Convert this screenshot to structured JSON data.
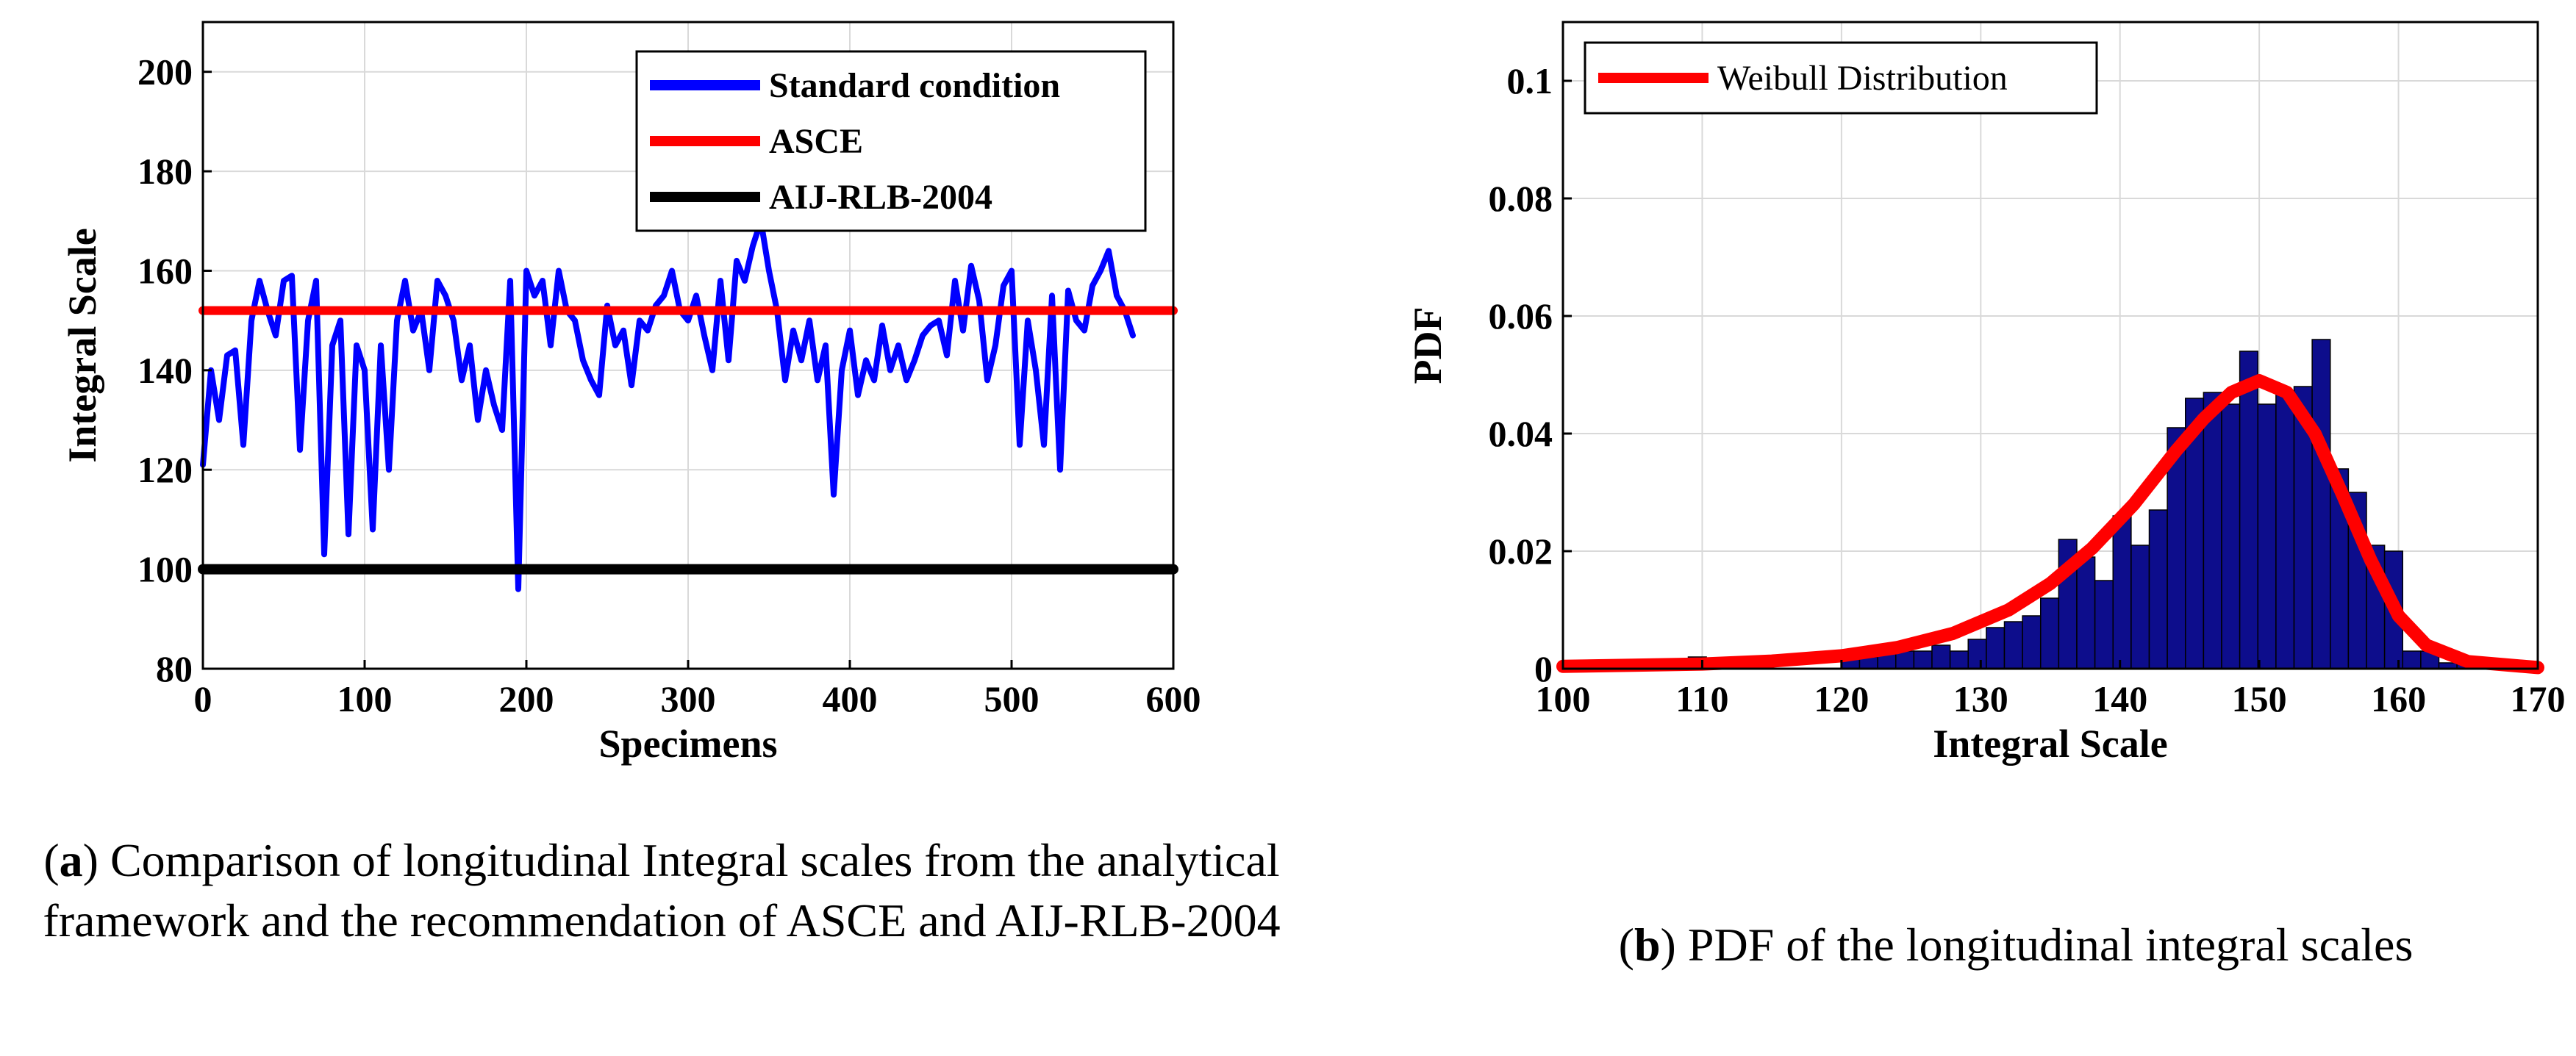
{
  "chart_data": [
    {
      "id": "a",
      "type": "line",
      "xlabel": "Specimens",
      "ylabel": "Integral Scale",
      "xlim": [
        0,
        600
      ],
      "ylim": [
        80,
        210
      ],
      "xticks": [
        0,
        100,
        200,
        300,
        400,
        500,
        600
      ],
      "yticks": [
        80,
        100,
        120,
        140,
        160,
        180,
        200
      ],
      "grid": true,
      "legend_position": "top-right",
      "series": [
        {
          "name": "Standard condition",
          "color": "#0000ff",
          "x": [
            0,
            5,
            10,
            15,
            20,
            25,
            30,
            35,
            40,
            45,
            50,
            55,
            60,
            65,
            70,
            75,
            80,
            85,
            90,
            95,
            100,
            105,
            110,
            115,
            120,
            125,
            130,
            135,
            140,
            145,
            150,
            155,
            160,
            165,
            170,
            175,
            180,
            185,
            190,
            195,
            200,
            205,
            210,
            215,
            220,
            225,
            230,
            235,
            240,
            245,
            250,
            255,
            260,
            265,
            270,
            275,
            280,
            285,
            290,
            295,
            300,
            305,
            310,
            315,
            320,
            325,
            330,
            335,
            340,
            345,
            350,
            355,
            360,
            365,
            370,
            375,
            380,
            385,
            390,
            395,
            400,
            405,
            410,
            415,
            420,
            425,
            430,
            435,
            440,
            445,
            450,
            455,
            460,
            465,
            470,
            475,
            480,
            485,
            490,
            495,
            500,
            505,
            510,
            515,
            520,
            525,
            530,
            535,
            540,
            545,
            550,
            555,
            560,
            565,
            570,
            575
          ],
          "values": [
            121,
            140,
            130,
            143,
            144,
            125,
            150,
            158,
            152,
            147,
            158,
            159,
            124,
            150,
            158,
            103,
            145,
            150,
            107,
            145,
            140,
            108,
            145,
            120,
            150,
            158,
            148,
            152,
            140,
            158,
            155,
            150,
            138,
            145,
            130,
            140,
            133,
            128,
            158,
            96,
            160,
            155,
            158,
            145,
            160,
            152,
            150,
            142,
            138,
            135,
            153,
            145,
            148,
            137,
            150,
            148,
            153,
            155,
            160,
            152,
            150,
            155,
            147,
            140,
            158,
            142,
            162,
            158,
            165,
            170,
            160,
            152,
            138,
            148,
            142,
            150,
            138,
            145,
            115,
            140,
            148,
            135,
            142,
            138,
            149,
            140,
            145,
            138,
            142,
            147,
            149,
            150,
            143,
            158,
            148,
            161,
            154,
            138,
            145,
            157,
            160,
            125,
            150,
            140,
            125,
            155,
            120,
            156,
            150,
            148,
            157,
            160,
            164,
            155,
            152,
            147
          ]
        },
        {
          "name": "ASCE",
          "color": "#ff0000",
          "x": [
            0,
            600
          ],
          "values": [
            152,
            152
          ]
        },
        {
          "name": "AIJ-RLB-2004",
          "color": "#000000",
          "x": [
            0,
            600
          ],
          "values": [
            100,
            100
          ]
        }
      ]
    },
    {
      "id": "b",
      "type": "bar",
      "xlabel": "Integral Scale",
      "ylabel": "PDF",
      "xlim": [
        100,
        170
      ],
      "ylim": [
        0,
        0.11
      ],
      "xticks": [
        100,
        110,
        120,
        130,
        140,
        150,
        160,
        170
      ],
      "yticks": [
        0,
        0.02,
        0.04,
        0.06,
        0.08,
        0.1
      ],
      "ytick_labels": [
        "0",
        "0.02",
        "0.04",
        "0.06",
        "0.08",
        "0.1"
      ],
      "grid": true,
      "legend_position": "top-left",
      "bin_width": 1.3,
      "bar_color": "#0d0d8c",
      "bins": [
        109,
        120,
        121.3,
        122.6,
        123.9,
        125.2,
        126.5,
        127.8,
        129.1,
        130.4,
        131.7,
        133,
        134.3,
        135.6,
        136.9,
        138.2,
        139.5,
        140.8,
        142.1,
        143.4,
        144.7,
        146,
        147.3,
        148.6,
        149.9,
        151.2,
        152.5,
        153.8,
        155.1,
        156.4,
        157.7,
        159,
        160.3,
        161.6,
        162.9,
        164.2
      ],
      "values": [
        0.002,
        0.002,
        0.002,
        0.003,
        0.003,
        0.003,
        0.004,
        0.003,
        0.005,
        0.007,
        0.008,
        0.009,
        0.012,
        0.022,
        0.019,
        0.015,
        0.026,
        0.021,
        0.027,
        0.041,
        0.046,
        0.047,
        0.045,
        0.054,
        0.045,
        0.047,
        0.048,
        0.056,
        0.034,
        0.03,
        0.021,
        0.02,
        0.003,
        0.003,
        0.001,
        0.001
      ],
      "series": [
        {
          "name": "Weibull Distribution",
          "color": "#ff0000",
          "x": [
            100,
            105,
            110,
            115,
            120,
            124,
            128,
            132,
            135,
            138,
            141,
            144,
            146,
            148,
            150,
            152,
            154,
            156,
            158,
            160,
            162,
            165,
            170
          ],
          "values": [
            0.0004,
            0.0006,
            0.0008,
            0.0013,
            0.0022,
            0.0036,
            0.006,
            0.01,
            0.0145,
            0.0205,
            0.028,
            0.037,
            0.0425,
            0.047,
            0.049,
            0.047,
            0.04,
            0.0295,
            0.0185,
            0.009,
            0.004,
            0.0012,
            0.0002
          ]
        }
      ]
    }
  ],
  "captions": {
    "a_label": "a",
    "a_text": ") Comparison of longitudinal Integral scales from the analytical framework and the recommendation of ASCE and AIJ-RLB-2004",
    "b_label": "b",
    "b_text": ") PDF of the longitudinal integral scales"
  }
}
